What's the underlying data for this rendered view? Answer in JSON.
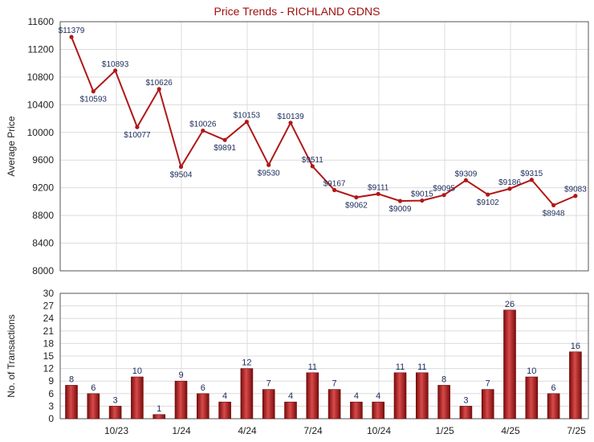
{
  "chart_data": [
    {
      "type": "line",
      "title": "Price Trends - RICHLAND GDNS",
      "ylabel": "Average Price",
      "ylim": [
        8000,
        11600
      ],
      "yticks": [
        8000,
        8400,
        8800,
        9200,
        9600,
        10000,
        10400,
        10800,
        11200,
        11600
      ],
      "grid": true,
      "series": [
        {
          "color": "#b01818",
          "values": [
            11379,
            10593,
            10893,
            10077,
            10626,
            9504,
            10026,
            9891,
            10153,
            9530,
            10139,
            9511,
            9167,
            9062,
            9111,
            9009,
            9015,
            9095,
            9309,
            9102,
            9186,
            9315,
            8948,
            9083
          ],
          "labels": [
            "$11379",
            "$10593",
            "$10893",
            "$10077",
            "$10626",
            "$9504",
            "$10026",
            "$9891",
            "$10153",
            "$9530",
            "$10139",
            "$9511",
            "$9167",
            "$9062",
            "$9111",
            "$9009",
            "$9015",
            "$9095",
            "$9309",
            "$9102",
            "$9186",
            "$9315",
            "$8948",
            "$9083"
          ]
        }
      ]
    },
    {
      "type": "bar",
      "ylabel": "No. of Transactions",
      "ylim": [
        0,
        30
      ],
      "yticks": [
        0,
        3,
        6,
        9,
        12,
        15,
        18,
        21,
        24,
        27,
        30
      ],
      "grid": true,
      "xtick_labels": [
        "10/23",
        "1/24",
        "4/24",
        "7/24",
        "10/24",
        "1/25",
        "4/25",
        "7/25"
      ],
      "series": [
        {
          "color": "#b01818",
          "values": [
            8,
            6,
            3,
            10,
            1,
            9,
            6,
            4,
            12,
            7,
            4,
            11,
            7,
            4,
            4,
            11,
            11,
            8,
            3,
            7,
            26,
            10,
            6,
            16
          ]
        }
      ]
    }
  ]
}
